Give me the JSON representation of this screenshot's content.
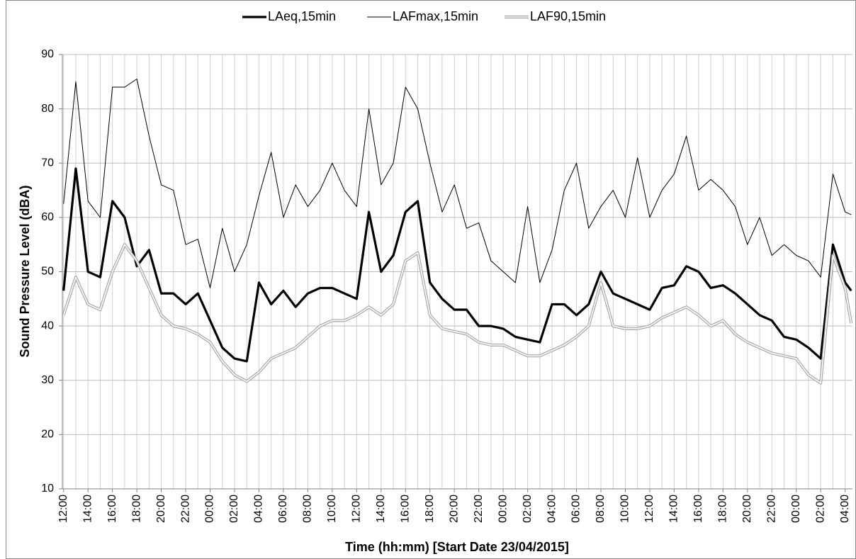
{
  "chart_data": {
    "type": "line",
    "y_label": "Sound Pressure Level (dBA)",
    "x_label": "Time (hh:mm)  [Start Date 23/04/2015]",
    "x": [
      0,
      1,
      2,
      3,
      4,
      5,
      6,
      7,
      8,
      9,
      10,
      11,
      12,
      13,
      14,
      15,
      16,
      17,
      18,
      19,
      20,
      21,
      22,
      23,
      24,
      25,
      26,
      27,
      28,
      29,
      30,
      31,
      32,
      33,
      34,
      35,
      36,
      37,
      38,
      39,
      40,
      41,
      42,
      43,
      44,
      45,
      46,
      47,
      48,
      49,
      50,
      51,
      52,
      53,
      54,
      55,
      56,
      57,
      58,
      59,
      60,
      61,
      62,
      63,
      64,
      64.5
    ],
    "series": [
      {
        "name": "LAeq,15min",
        "color": "#000000",
        "values": [
          46.5,
          69,
          50,
          49,
          63,
          60,
          51,
          54,
          46,
          46,
          44,
          46,
          41,
          36,
          34,
          33.5,
          48,
          44,
          46.5,
          43.5,
          46,
          47,
          47,
          46,
          45,
          61,
          50,
          53,
          61,
          63,
          48,
          45,
          43,
          43,
          40,
          40,
          39.5,
          38,
          37.5,
          37,
          44,
          44,
          42,
          44,
          50,
          46,
          45,
          44,
          43,
          47,
          47.5,
          51,
          50,
          47,
          47.5,
          46,
          44,
          42,
          41,
          38,
          37.5,
          36,
          34,
          55,
          48,
          46.5
        ]
      },
      {
        "name": "LAFmax,15min",
        "color": "#000000",
        "values": [
          62.5,
          85,
          63,
          60,
          84,
          84,
          85.5,
          75,
          66,
          65,
          55,
          56,
          47,
          58,
          50,
          55,
          64,
          72,
          60,
          66,
          62,
          65,
          70,
          65,
          62,
          80,
          66,
          70,
          84,
          80,
          70,
          61,
          66,
          58,
          59,
          52,
          50,
          48,
          62,
          48,
          54,
          65,
          70,
          58,
          62,
          65,
          60,
          71,
          60,
          65,
          68,
          75,
          65,
          67,
          65,
          62,
          55,
          60,
          53,
          55,
          53,
          52,
          49,
          68,
          61,
          60.5
        ]
      },
      {
        "name": "LAF90,15min",
        "color": "#a6a6a6",
        "values": [
          42,
          49,
          44,
          43,
          50,
          55,
          52,
          47,
          42,
          40,
          39.5,
          38.5,
          37,
          33.5,
          31,
          29.8,
          31.5,
          34,
          35,
          36,
          38,
          40,
          41,
          41,
          42,
          43.5,
          42,
          44,
          52,
          53.5,
          42,
          39.5,
          39,
          38.5,
          37,
          36.5,
          36.5,
          35.5,
          34.5,
          34.5,
          35.5,
          36.5,
          38,
          40,
          48,
          40,
          39.5,
          39.5,
          40,
          41.5,
          42.5,
          43.5,
          42,
          40,
          41,
          38.5,
          37,
          36,
          35,
          34.5,
          34,
          31,
          29.5,
          53,
          47,
          40.5
        ]
      }
    ],
    "xlim": [
      -0.1,
      64.6
    ],
    "xticks": [
      {
        "value": 0,
        "label": "12:00"
      },
      {
        "value": 2,
        "label": "14:00"
      },
      {
        "value": 4,
        "label": "16:00"
      },
      {
        "value": 6,
        "label": "18:00"
      },
      {
        "value": 8,
        "label": "20:00"
      },
      {
        "value": 10,
        "label": "22:00"
      },
      {
        "value": 12,
        "label": "00:00"
      },
      {
        "value": 14,
        "label": "02:00"
      },
      {
        "value": 16,
        "label": "04:00"
      },
      {
        "value": 18,
        "label": "06:00"
      },
      {
        "value": 20,
        "label": "08:00"
      },
      {
        "value": 22,
        "label": "10:00"
      },
      {
        "value": 24,
        "label": "12:00"
      },
      {
        "value": 26,
        "label": "14:00"
      },
      {
        "value": 28,
        "label": "16:00"
      },
      {
        "value": 30,
        "label": "18:00"
      },
      {
        "value": 32,
        "label": "20:00"
      },
      {
        "value": 34,
        "label": "22:00"
      },
      {
        "value": 36,
        "label": "00:00"
      },
      {
        "value": 38,
        "label": "02:00"
      },
      {
        "value": 40,
        "label": "04:00"
      },
      {
        "value": 42,
        "label": "06:00"
      },
      {
        "value": 44,
        "label": "08:00"
      },
      {
        "value": 46,
        "label": "10:00"
      },
      {
        "value": 48,
        "label": "12:00"
      },
      {
        "value": 50,
        "label": "14:00"
      },
      {
        "value": 52,
        "label": "16:00"
      },
      {
        "value": 54,
        "label": "18:00"
      },
      {
        "value": 56,
        "label": "20:00"
      },
      {
        "value": 58,
        "label": "22:00"
      },
      {
        "value": 60,
        "label": "00:00"
      },
      {
        "value": 62,
        "label": "02:00"
      },
      {
        "value": 64,
        "label": "04:00"
      }
    ],
    "xminor_ticks": [
      1,
      3,
      5,
      7,
      9,
      11,
      13,
      15,
      17,
      19,
      21,
      23,
      25,
      27,
      29,
      31,
      33,
      35,
      37,
      39,
      41,
      43,
      45,
      47,
      49,
      51,
      53,
      55,
      57,
      59,
      61,
      63
    ],
    "ylim": [
      10,
      90
    ],
    "yticks": [
      10,
      20,
      30,
      40,
      50,
      60,
      70,
      80,
      90
    ],
    "grid": true,
    "legend": "top"
  }
}
